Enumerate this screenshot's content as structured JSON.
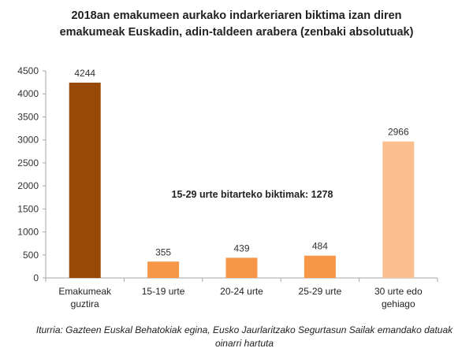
{
  "chart_data": {
    "type": "bar",
    "title_lines": [
      "2018an emakumeen aurkako indarkeriaren biktima izan diren",
      "emakumeak Euskadin, adin-taldeen arabera (zenbaki absolutuak)"
    ],
    "categories": [
      [
        "Emakumeak",
        "guztira"
      ],
      [
        "15-19 urte"
      ],
      [
        "20-24 urte"
      ],
      [
        "25-29 urte"
      ],
      [
        "30 urte edo",
        "gehiago"
      ]
    ],
    "values": [
      4244,
      355,
      439,
      484,
      2966
    ],
    "colors": [
      "#984807",
      "#F79646",
      "#F79646",
      "#F79646",
      "#FAC090"
    ],
    "ylim": [
      0,
      4500
    ],
    "yticks": [
      0,
      500,
      1000,
      1500,
      2000,
      2500,
      3000,
      3500,
      4000,
      4500
    ],
    "grid": false,
    "annotation": "15-29 urte bitarteko biktimak: 1278",
    "source": "Iturria: Gazteen Euskal Behatokiak egina, Eusko Jaurlaritzako Segurtasun Sailak emandako datuak oinarri hartuta"
  }
}
